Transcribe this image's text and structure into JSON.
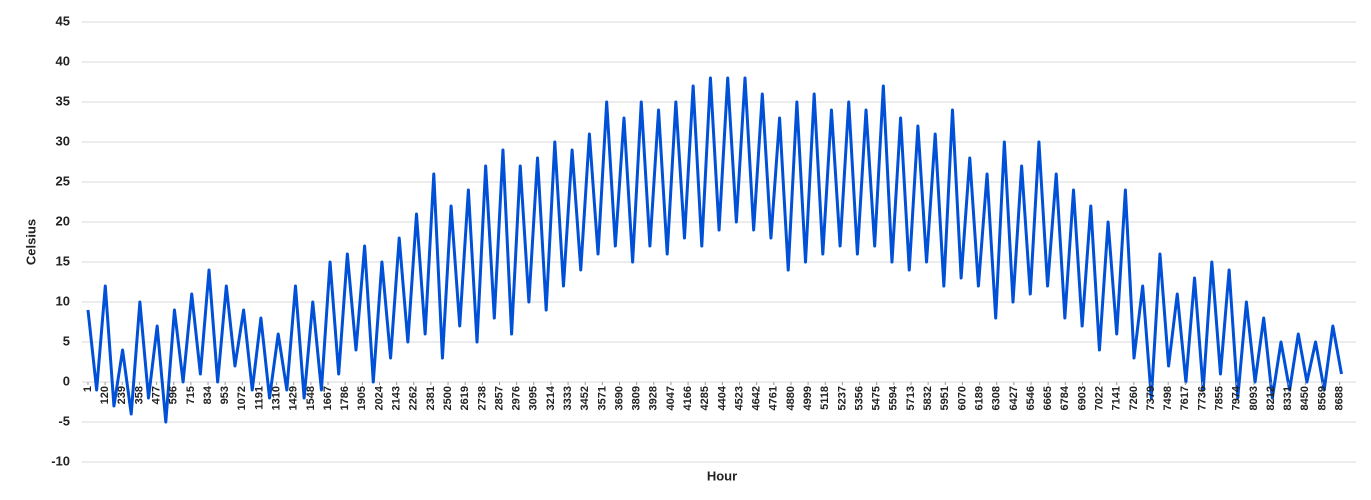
{
  "chart_data": {
    "type": "line",
    "x_label": "Hour",
    "y_label": "Celsius",
    "x": [
      1,
      61,
      121,
      181,
      241,
      301,
      361,
      421,
      481,
      541,
      601,
      661,
      721,
      781,
      841,
      901,
      961,
      1021,
      1081,
      1141,
      1201,
      1261,
      1321,
      1381,
      1441,
      1501,
      1561,
      1621,
      1681,
      1741,
      1801,
      1861,
      1921,
      1981,
      2041,
      2101,
      2161,
      2221,
      2281,
      2341,
      2401,
      2461,
      2521,
      2581,
      2641,
      2701,
      2761,
      2821,
      2881,
      2941,
      3001,
      3061,
      3121,
      3181,
      3241,
      3301,
      3361,
      3421,
      3481,
      3541,
      3601,
      3661,
      3721,
      3781,
      3841,
      3901,
      3961,
      4021,
      4081,
      4141,
      4201,
      4261,
      4321,
      4381,
      4441,
      4501,
      4561,
      4621,
      4681,
      4741,
      4801,
      4861,
      4921,
      4981,
      5041,
      5101,
      5161,
      5221,
      5281,
      5341,
      5401,
      5461,
      5521,
      5581,
      5641,
      5701,
      5761,
      5821,
      5881,
      5941,
      6001,
      6061,
      6121,
      6181,
      6241,
      6301,
      6361,
      6421,
      6481,
      6541,
      6601,
      6661,
      6721,
      6781,
      6841,
      6901,
      6961,
      7021,
      7081,
      7141,
      7201,
      7261,
      7321,
      7381,
      7441,
      7501,
      7561,
      7621,
      7681,
      7741,
      7801,
      7861,
      7921,
      7981,
      8041,
      8101,
      8161,
      8221,
      8281,
      8341,
      8401,
      8461,
      8521,
      8581,
      8641,
      8701
    ],
    "values": [
      9,
      -1,
      12,
      -3,
      4,
      -4,
      10,
      -2,
      7,
      -5,
      9,
      0,
      11,
      1,
      14,
      0,
      12,
      2,
      9,
      -1,
      8,
      -2,
      6,
      -1,
      12,
      -2,
      10,
      -1,
      15,
      1,
      16,
      4,
      17,
      0,
      15,
      3,
      18,
      5,
      21,
      6,
      26,
      3,
      22,
      7,
      24,
      5,
      27,
      8,
      29,
      6,
      27,
      10,
      28,
      9,
      30,
      12,
      29,
      14,
      31,
      16,
      35,
      17,
      33,
      15,
      35,
      17,
      34,
      16,
      35,
      18,
      37,
      17,
      38,
      19,
      38,
      20,
      38,
      19,
      36,
      18,
      33,
      14,
      35,
      15,
      36,
      16,
      34,
      17,
      35,
      16,
      34,
      17,
      37,
      15,
      33,
      14,
      32,
      15,
      31,
      12,
      34,
      13,
      28,
      12,
      26,
      8,
      30,
      10,
      27,
      11,
      30,
      12,
      26,
      8,
      24,
      7,
      22,
      4,
      20,
      6,
      24,
      3,
      12,
      -2,
      16,
      2,
      11,
      0,
      13,
      -1,
      15,
      1,
      14,
      -2,
      10,
      0,
      8,
      -2,
      5,
      -1,
      6,
      0,
      5,
      -1,
      7,
      1
    ],
    "color": "#0050d8",
    "xlim": [
      1,
      8760
    ],
    "xticks": [
      1,
      120,
      239,
      358,
      477,
      596,
      715,
      834,
      953,
      1072,
      1191,
      1310,
      1429,
      1548,
      1667,
      1786,
      1905,
      2024,
      2143,
      2262,
      2381,
      2500,
      2619,
      2738,
      2857,
      2976,
      3095,
      3214,
      3333,
      3452,
      3571,
      3690,
      3809,
      3928,
      4047,
      4166,
      4285,
      4404,
      4523,
      4642,
      4761,
      4880,
      4999,
      5118,
      5237,
      5356,
      5475,
      5594,
      5713,
      5832,
      5951,
      6070,
      6189,
      6308,
      6427,
      6546,
      6665,
      6784,
      6903,
      7022,
      7141,
      7260,
      7379,
      7498,
      7617,
      7736,
      7855,
      7974,
      8093,
      8212,
      8331,
      8450,
      8569,
      8688
    ],
    "ylim": [
      -10,
      45
    ],
    "yticks": [
      -10,
      -5,
      0,
      5,
      10,
      15,
      20,
      25,
      30,
      35,
      40,
      45
    ],
    "grid": true
  }
}
